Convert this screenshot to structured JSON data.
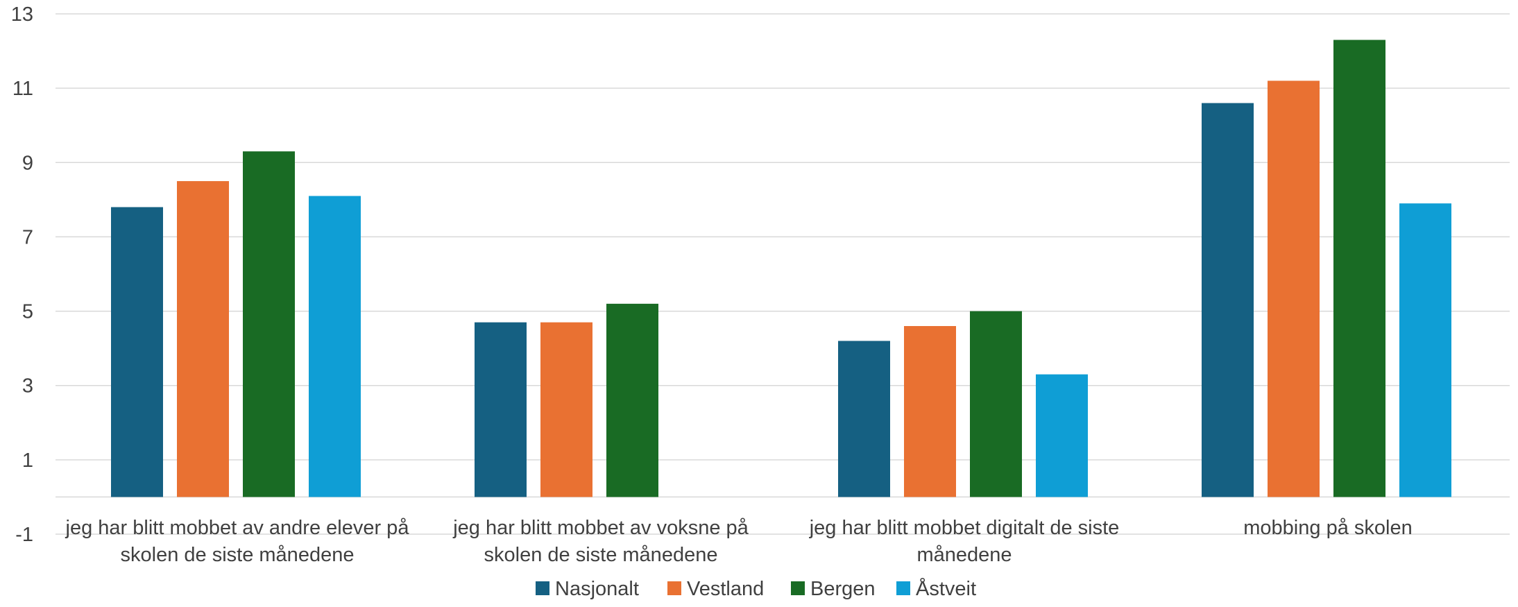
{
  "chart_data": {
    "type": "bar",
    "title": "",
    "xlabel": "",
    "ylabel": "",
    "ylim": [
      -1,
      13
    ],
    "yticks": [
      -1,
      1,
      3,
      5,
      7,
      9,
      11,
      13
    ],
    "grid": true,
    "legend_position": "bottom",
    "categories": [
      [
        "jeg har blitt mobbet av andre elever på",
        "skolen de siste månedene"
      ],
      [
        "jeg har blitt mobbet av voksne på",
        "skolen de siste månedene"
      ],
      [
        "jeg har blitt mobbet digitalt de siste",
        "månedene"
      ],
      [
        "mobbing på skolen"
      ]
    ],
    "series": [
      {
        "name": "Nasjonalt",
        "color": "#156082",
        "values": [
          7.8,
          4.7,
          4.2,
          10.6
        ]
      },
      {
        "name": "Vestland",
        "color": "#E97132",
        "values": [
          8.5,
          4.7,
          4.6,
          11.2
        ]
      },
      {
        "name": "Bergen",
        "color": "#196B24",
        "values": [
          9.3,
          5.2,
          5.0,
          12.3
        ]
      },
      {
        "name": "Åstveit",
        "color": "#0F9ED5",
        "values": [
          8.1,
          null,
          3.3,
          7.9
        ]
      }
    ]
  }
}
